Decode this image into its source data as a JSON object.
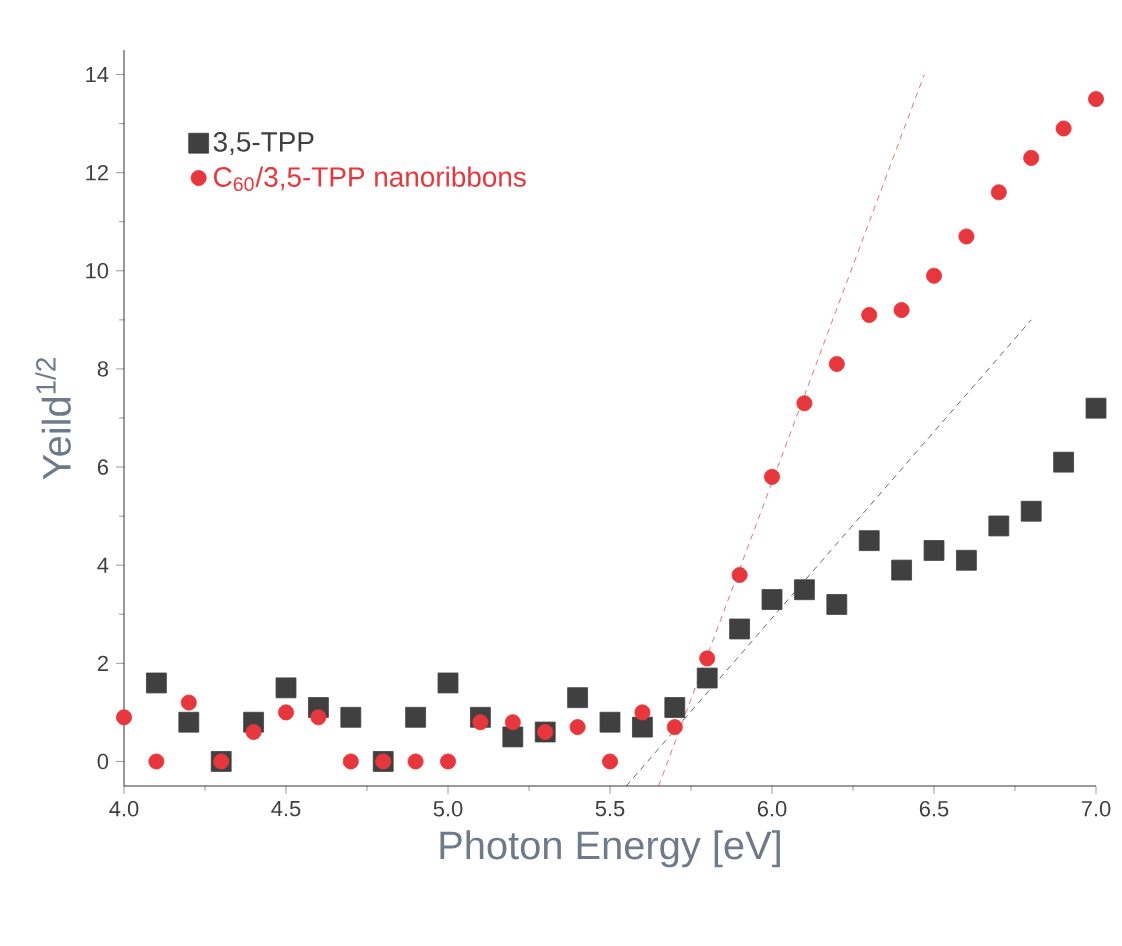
{
  "chart_data": {
    "type": "scatter",
    "xlabel": "Photon Energy [eV]",
    "ylabel": "Yeild$^{1/2}$",
    "xlim": [
      4.0,
      7.0
    ],
    "ylim": [
      -0.5,
      14.5
    ],
    "xticks": [
      {
        "value": 4.0,
        "label": "4.0"
      },
      {
        "value": 4.5,
        "label": "4.5"
      },
      {
        "value": 5.0,
        "label": "5.0"
      },
      {
        "value": 5.5,
        "label": "5.5"
      },
      {
        "value": 6.0,
        "label": "6.0"
      },
      {
        "value": 6.5,
        "label": "6.5"
      },
      {
        "value": 7.0,
        "label": "7.0"
      }
    ],
    "yticks": [
      0,
      2,
      4,
      6,
      8,
      10,
      12,
      14
    ],
    "grid": false,
    "legend": "top left",
    "series": [
      {
        "name": "3,5-TPP",
        "color": "#404040",
        "marker": "square",
        "x": [
          4.1,
          4.2,
          4.3,
          4.4,
          4.5,
          4.6,
          4.7,
          4.8,
          4.9,
          5.0,
          5.1,
          5.2,
          5.3,
          5.4,
          5.5,
          5.6,
          5.7,
          5.8,
          5.9,
          6.0,
          6.1,
          6.2,
          6.3,
          6.4,
          6.5,
          6.6,
          6.7,
          6.8,
          6.9,
          7.0
        ],
        "values": [
          1.6,
          0.8,
          0,
          0.8,
          1.5,
          1.1,
          0.9,
          0,
          0.9,
          1.6,
          0.9,
          0.5,
          0.6,
          1.3,
          0.8,
          0.7,
          1.1,
          1.7,
          2.7,
          3.3,
          3.5,
          3.2,
          4.5,
          3.9,
          4.3,
          4.1,
          4.8,
          5.1,
          6.1,
          7.2
        ]
      },
      {
        "name": "C$_{60}$/3,5-TPP nanoribbons",
        "color": "#e8373c",
        "marker": "circle",
        "x": [
          4.0,
          4.1,
          4.2,
          4.3,
          4.4,
          4.5,
          4.6,
          4.7,
          4.8,
          4.9,
          5.0,
          5.1,
          5.2,
          5.3,
          5.4,
          5.5,
          5.6,
          5.7,
          5.8,
          5.9,
          6.0,
          6.1,
          6.2,
          6.3,
          6.4,
          6.5,
          6.6,
          6.7,
          6.8,
          6.9,
          7.0
        ],
        "values": [
          0.9,
          0,
          1.2,
          0,
          0.6,
          1.0,
          0.9,
          0,
          0,
          0,
          0,
          0.8,
          0.8,
          0.6,
          0.7,
          0,
          1.0,
          0.7,
          2.1,
          3.8,
          5.8,
          7.3,
          8.1,
          9.1,
          9.2,
          9.9,
          10.7,
          11.6,
          12.3,
          12.9,
          13.5
        ]
      },
      {
        "type": "line",
        "color": "#e05050",
        "line_style": "dashed",
        "x": [
          5.65,
          6.47
        ],
        "values": [
          -0.5,
          14.0
        ]
      },
      {
        "type": "line",
        "color": "#404040",
        "line_style": "dashed",
        "x": [
          5.55,
          6.8
        ],
        "values": [
          -0.5,
          9.0
        ]
      }
    ]
  }
}
